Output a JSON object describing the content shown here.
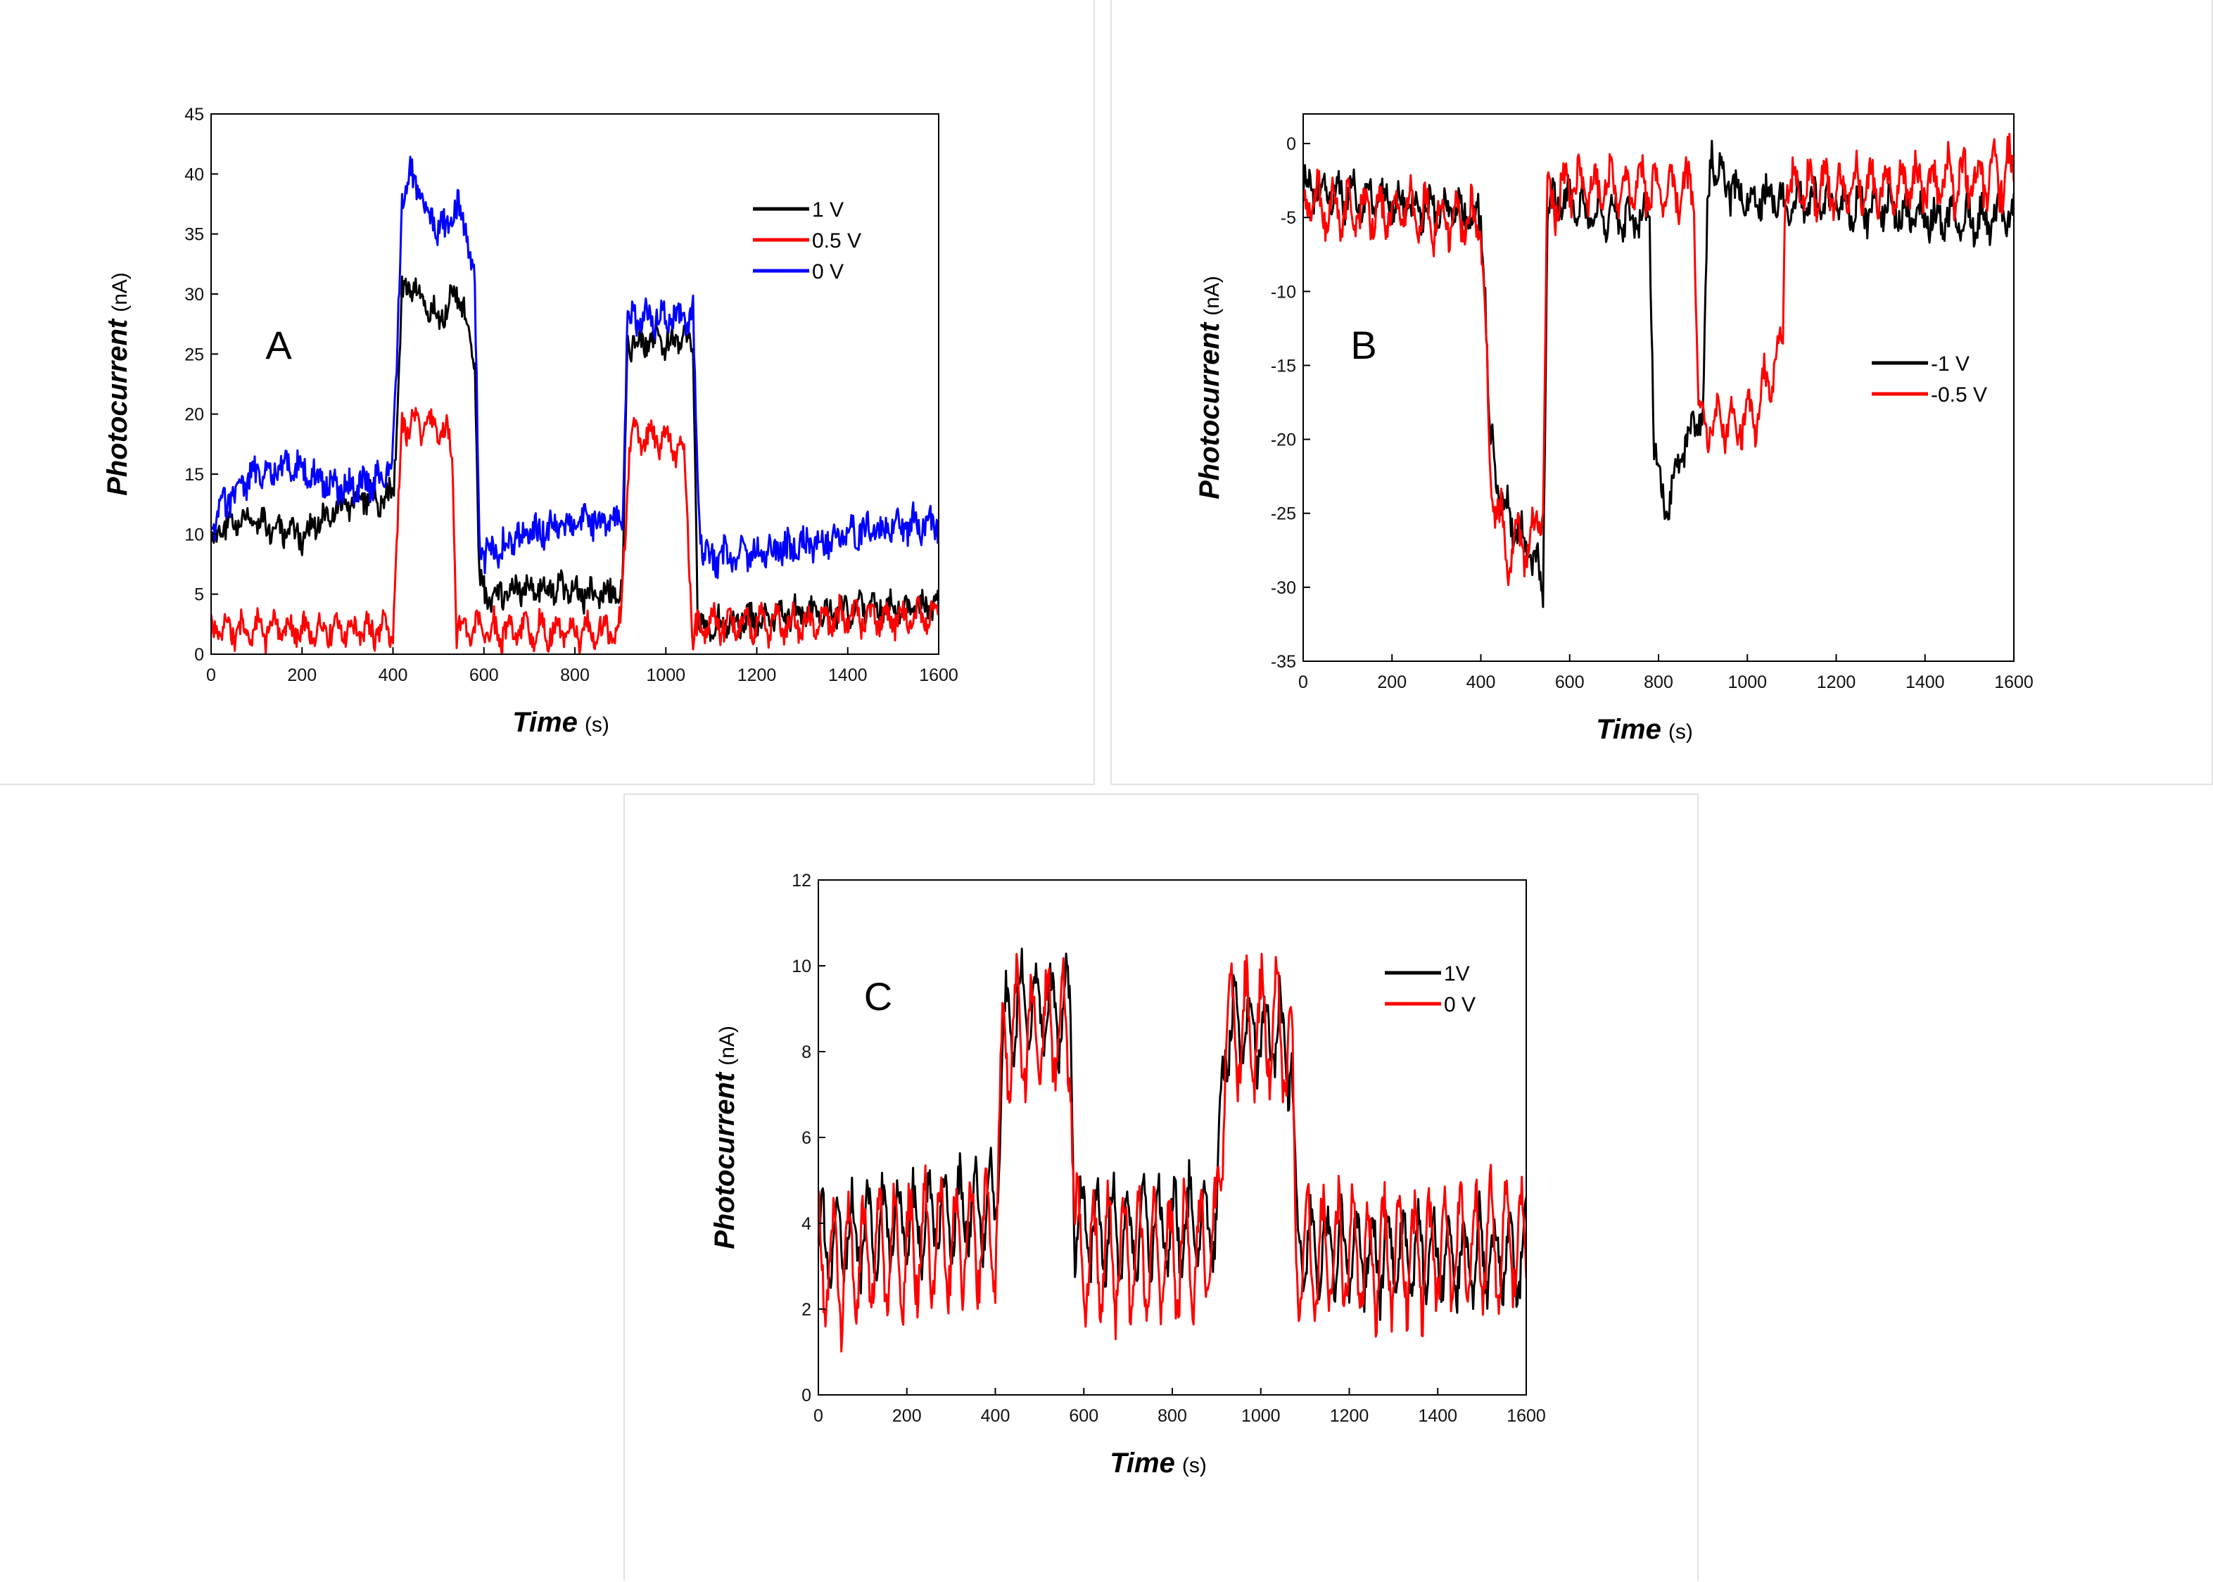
{
  "chart_data": [
    {
      "type": "line",
      "panel_label": "A",
      "xlabel": "Time",
      "xunit": "(s)",
      "ylabel": "Photocurrent",
      "yunit": "(nA)",
      "xlim": [
        0,
        1600
      ],
      "ylim": [
        0,
        45
      ],
      "xticks": [
        0,
        200,
        400,
        600,
        800,
        1000,
        1200,
        1400,
        1600
      ],
      "yticks": [
        0,
        5,
        10,
        15,
        20,
        25,
        30,
        35,
        40,
        45
      ],
      "legend_position": "top-right",
      "series": [
        {
          "name": "1 V",
          "color": "#000000",
          "x": [
            0,
            40,
            80,
            120,
            160,
            200,
            240,
            280,
            320,
            360,
            400,
            410,
            420,
            440,
            460,
            480,
            500,
            520,
            540,
            560,
            580,
            590,
            600,
            640,
            700,
            760,
            820,
            880,
            905,
            915,
            940,
            980,
            1020,
            1060,
            1070,
            1080,
            1120,
            1200,
            1300,
            1400,
            1500,
            1600
          ],
          "y": [
            9,
            11,
            11,
            11,
            10,
            10,
            11,
            12,
            13,
            13,
            13,
            20,
            30,
            31,
            30,
            29,
            28,
            29,
            30,
            28,
            24,
            6,
            5,
            5,
            5.5,
            5.5,
            5,
            5,
            5,
            26,
            26,
            26,
            26,
            26,
            3,
            2,
            2.5,
            3,
            3.5,
            3.5,
            4,
            4
          ]
        },
        {
          "name": "0.5 V",
          "color": "#ff0000",
          "x": [
            0,
            100,
            200,
            300,
            400,
            410,
            420,
            460,
            500,
            520,
            530,
            540,
            560,
            600,
            700,
            800,
            900,
            910,
            920,
            960,
            1000,
            1040,
            1060,
            1080,
            1100,
            1200,
            1300,
            1400,
            1500,
            1600
          ],
          "y": [
            2,
            2,
            2,
            2,
            2,
            10,
            19,
            19,
            19,
            18,
            17,
            2,
            2,
            2,
            2,
            2,
            2,
            10,
            18,
            18,
            18,
            17,
            1.5,
            2.5,
            2.5,
            2.5,
            2.5,
            3,
            3,
            3.5
          ]
        },
        {
          "name": "0 V",
          "color": "#0000ff",
          "x": [
            0,
            20,
            60,
            100,
            140,
            180,
            220,
            260,
            300,
            340,
            380,
            400,
            410,
            420,
            440,
            460,
            480,
            500,
            520,
            540,
            560,
            580,
            590,
            600,
            640,
            700,
            760,
            820,
            880,
            905,
            915,
            940,
            980,
            1020,
            1060,
            1070,
            1080,
            1100,
            1200,
            1300,
            1400,
            1500,
            1600
          ],
          "y": [
            10,
            12,
            14,
            15,
            15,
            16,
            15,
            14,
            14,
            14,
            15,
            17,
            26,
            38,
            40,
            38,
            37,
            35,
            36,
            37,
            36,
            30,
            10,
            8,
            9,
            10,
            10.5,
            11,
            11,
            11,
            28,
            28,
            28,
            28,
            28,
            15,
            8,
            8,
            8.5,
            9,
            10,
            10.5,
            11
          ]
        }
      ]
    },
    {
      "type": "line",
      "panel_label": "B",
      "xlabel": "Time",
      "xunit": "(s)",
      "ylabel": "Photocurrent",
      "yunit": "(nA)",
      "xlim": [
        0,
        1600
      ],
      "ylim": [
        -35,
        2
      ],
      "xticks": [
        0,
        200,
        400,
        600,
        800,
        1000,
        1200,
        1400,
        1600
      ],
      "yticks": [
        0,
        -5,
        -10,
        -15,
        -20,
        -25,
        -30,
        -35
      ],
      "legend_position": "right",
      "series": [
        {
          "name": "-1 V",
          "color": "#000000",
          "x": [
            0,
            100,
            200,
            300,
            400,
            410,
            420,
            440,
            460,
            480,
            500,
            520,
            530,
            540,
            550,
            600,
            700,
            760,
            780,
            790,
            800,
            820,
            840,
            860,
            880,
            900,
            910,
            920,
            930,
            960,
            1000,
            1100,
            1200,
            1300,
            1400,
            1500,
            1600
          ],
          "y": [
            -3,
            -3.5,
            -4,
            -4.5,
            -5,
            -10,
            -20,
            -23,
            -25,
            -26,
            -27,
            -28,
            -29,
            -30,
            -4,
            -4,
            -5,
            -5,
            -5,
            -20,
            -23,
            -25,
            -22,
            -20,
            -19,
            -18,
            -5,
            0,
            -2,
            -3,
            -3.5,
            -4,
            -4,
            -4.5,
            -5,
            -5,
            -5
          ]
        },
        {
          "name": "-0.5 V",
          "color": "#ff0000",
          "x": [
            0,
            100,
            200,
            300,
            400,
            410,
            420,
            440,
            460,
            480,
            500,
            520,
            530,
            540,
            550,
            600,
            700,
            800,
            880,
            890,
            900,
            940,
            980,
            1020,
            1060,
            1080,
            1085,
            1100,
            1200,
            1300,
            1400,
            1500,
            1600
          ],
          "y": [
            -4,
            -4.5,
            -4.5,
            -5,
            -5,
            -12,
            -22,
            -25,
            -28,
            -27,
            -27,
            -27,
            -25,
            -24,
            -4,
            -3,
            -3,
            -3,
            -3,
            -18,
            -19,
            -19,
            -19,
            -18,
            -15,
            -13,
            -2,
            -3,
            -3,
            -3,
            -2.5,
            -2.5,
            -2
          ]
        }
      ]
    },
    {
      "type": "line",
      "panel_label": "C",
      "xlabel": "Time",
      "xunit": "(s)",
      "ylabel": "Photocurrent",
      "yunit": "(nA)",
      "xlim": [
        0,
        1600
      ],
      "ylim": [
        0,
        12
      ],
      "xticks": [
        0,
        200,
        400,
        600,
        800,
        1000,
        1200,
        1400,
        1600
      ],
      "yticks": [
        0,
        2,
        4,
        6,
        8,
        10,
        12
      ],
      "legend_position": "top-right",
      "series": [
        {
          "name": "1V",
          "color": "#000000",
          "x": [
            0,
            100,
            200,
            300,
            400,
            410,
            420,
            460,
            500,
            540,
            570,
            580,
            600,
            700,
            800,
            900,
            910,
            920,
            960,
            1000,
            1040,
            1070,
            1080,
            1100,
            1200,
            1300,
            1400,
            1500,
            1600
          ],
          "y": [
            3.5,
            3.8,
            4.0,
            4.2,
            4.4,
            6.5,
            8.5,
            9,
            9,
            9,
            9,
            4,
            3.8,
            3.8,
            3.9,
            4.0,
            6.5,
            8.5,
            8.5,
            8.5,
            8.5,
            8,
            3.6,
            3.5,
            3.4,
            3.3,
            3.2,
            3.2,
            3.2
          ]
        },
        {
          "name": "0 V",
          "color": "#ff0000",
          "x": [
            0,
            100,
            200,
            300,
            400,
            410,
            420,
            460,
            500,
            540,
            570,
            580,
            600,
            700,
            800,
            900,
            910,
            920,
            960,
            1000,
            1040,
            1070,
            1080,
            1100,
            1200,
            1300,
            1400,
            1500,
            1600
          ],
          "y": [
            3.0,
            3.2,
            3.4,
            3.6,
            3.8,
            6,
            8.5,
            8.5,
            8.5,
            8.5,
            8.5,
            3.5,
            3.3,
            3.2,
            3.3,
            3.4,
            6,
            8.5,
            8.5,
            8.5,
            8.5,
            8,
            3.3,
            3.2,
            3.2,
            3.2,
            3.3,
            3.5,
            3.6
          ]
        }
      ]
    }
  ]
}
